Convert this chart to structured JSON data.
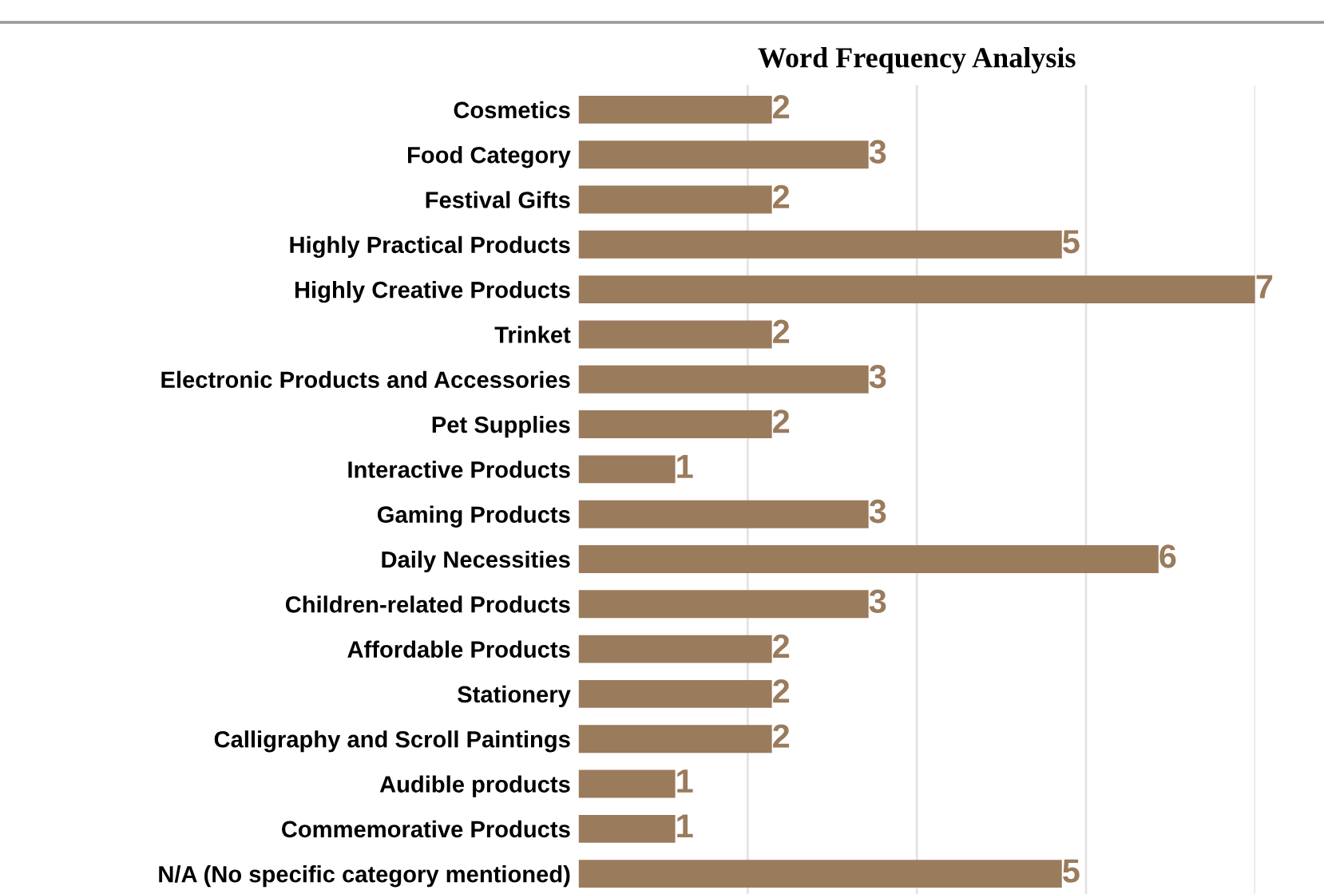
{
  "chart_data": {
    "type": "bar",
    "orientation": "horizontal",
    "title": "Word Frequency Analysis",
    "categories": [
      "Cosmetics",
      "Food Category",
      "Festival Gifts",
      "Highly Practical Products",
      "Highly Creative Products",
      "Trinket",
      "Electronic Products and Accessories",
      "Pet Supplies",
      "Interactive Products",
      "Gaming Products",
      "Daily Necessities",
      "Children-related Products",
      "Affordable Products",
      "Stationery",
      "Calligraphy and Scroll Paintings",
      "Audible products",
      "Commemorative Products",
      "N/A (No specific category mentioned)"
    ],
    "values": [
      2,
      3,
      2,
      5,
      7,
      2,
      3,
      2,
      1,
      3,
      6,
      3,
      2,
      2,
      2,
      1,
      1,
      5
    ],
    "color": "#9a7b5c",
    "data_labels": true,
    "xlim": [
      0,
      7
    ],
    "xticks": [
      {
        "value": 1.75,
        "label": null
      },
      {
        "value": 3.5,
        "label": null
      },
      {
        "value": 5.25,
        "label": null
      },
      {
        "value": 7,
        "label": null
      }
    ],
    "grid": "x",
    "tick_labels": "y"
  }
}
